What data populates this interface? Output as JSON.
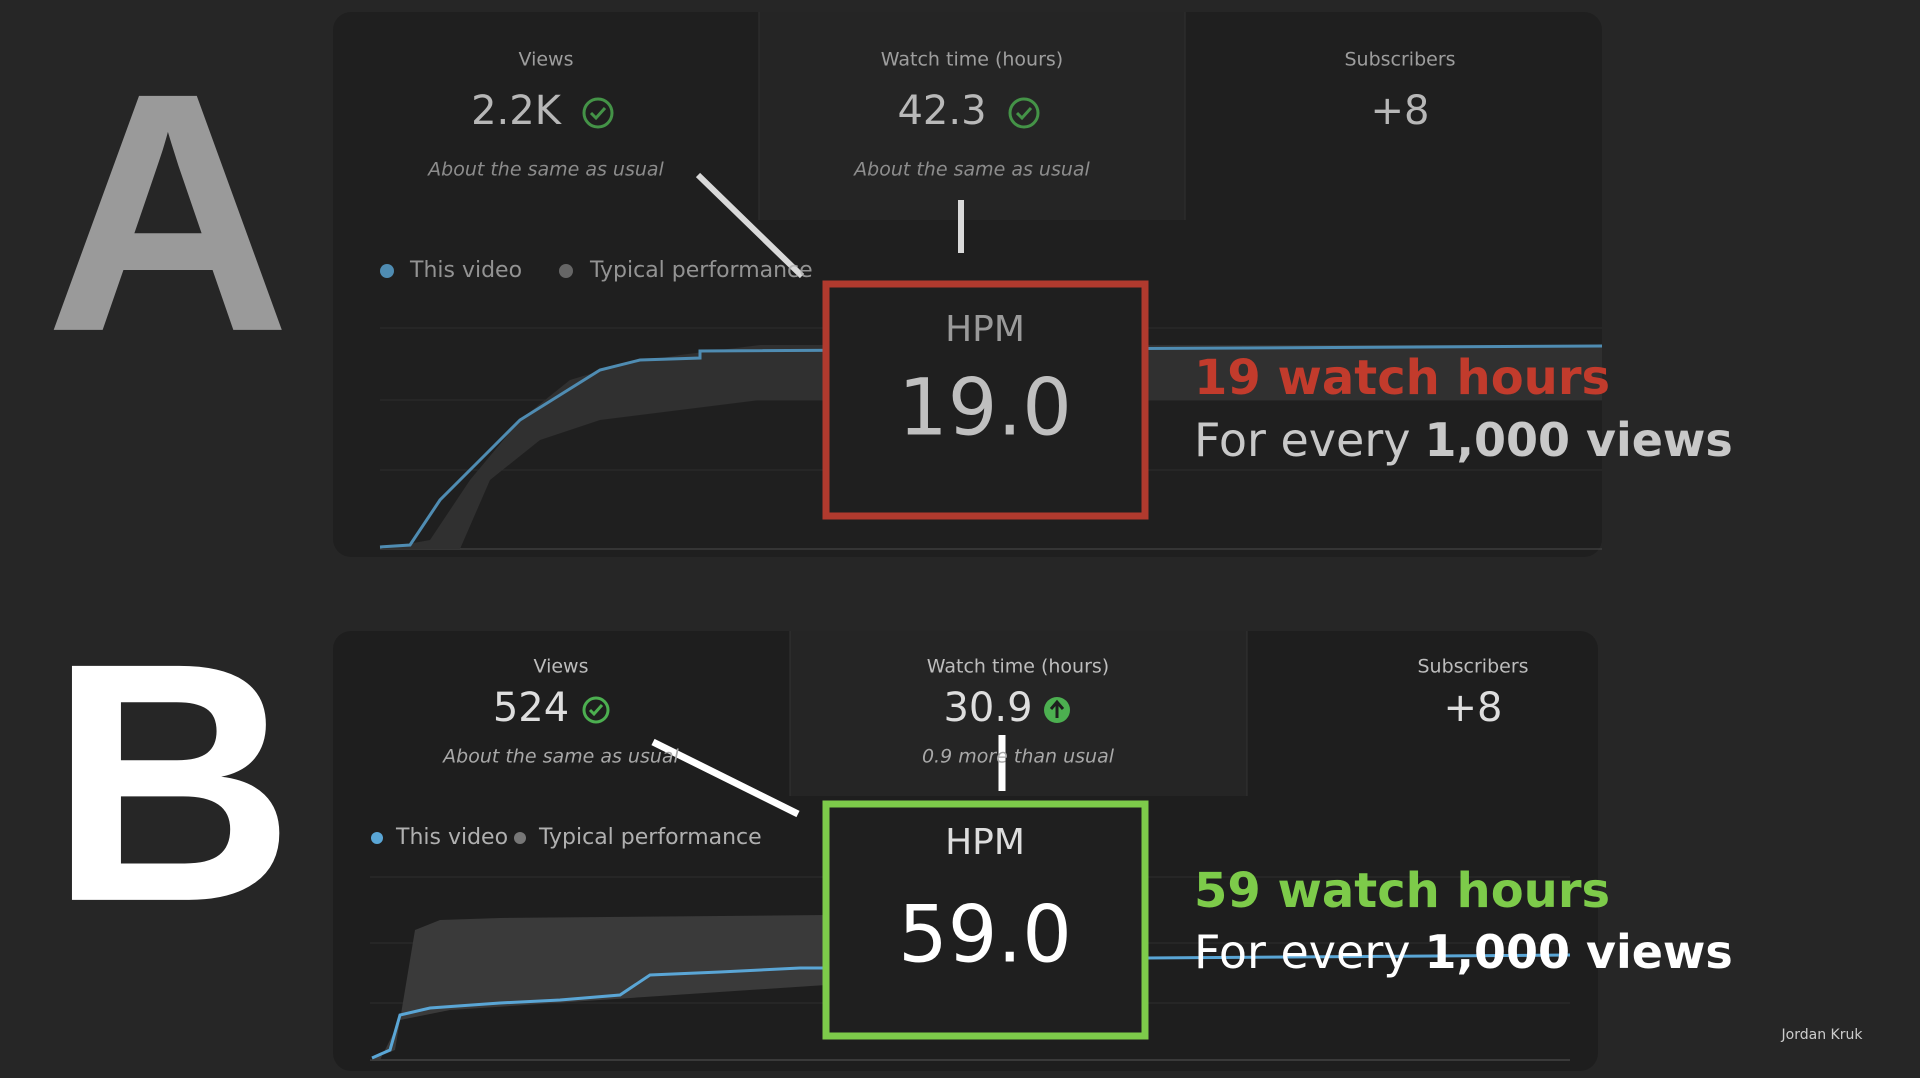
{
  "panels": [
    {
      "letter": "A",
      "metrics": [
        {
          "label": "Views",
          "value": "2.2K",
          "note": "About the same as usual"
        },
        {
          "label": "Watch time (hours)",
          "value": "42.3",
          "note": "About the same as usual"
        },
        {
          "label": "Subscribers",
          "value": "+8"
        }
      ],
      "legend": [
        "This video",
        "Typical performance"
      ],
      "hpm_label": "HPM",
      "hpm_value": "19.0",
      "headline": "19 watch hours",
      "subline_start": "For every",
      "subline_bold": "1,000 views"
    },
    {
      "letter": "B",
      "metrics": [
        {
          "label": "Views",
          "value": "524",
          "note": "About the same as usual"
        },
        {
          "label": "Watch time (hours)",
          "value": "30.9",
          "note": "0.9 more than usual"
        },
        {
          "label": "Subscribers",
          "value": "+8"
        }
      ],
      "legend": [
        "This video",
        "Typical performance"
      ],
      "hpm_label": "HPM",
      "hpm_value": "59.0",
      "headline": "59 watch hours",
      "subline_start": "For every",
      "subline_bold": "1,000 views"
    }
  ],
  "footer": "Jordan Kruk"
}
